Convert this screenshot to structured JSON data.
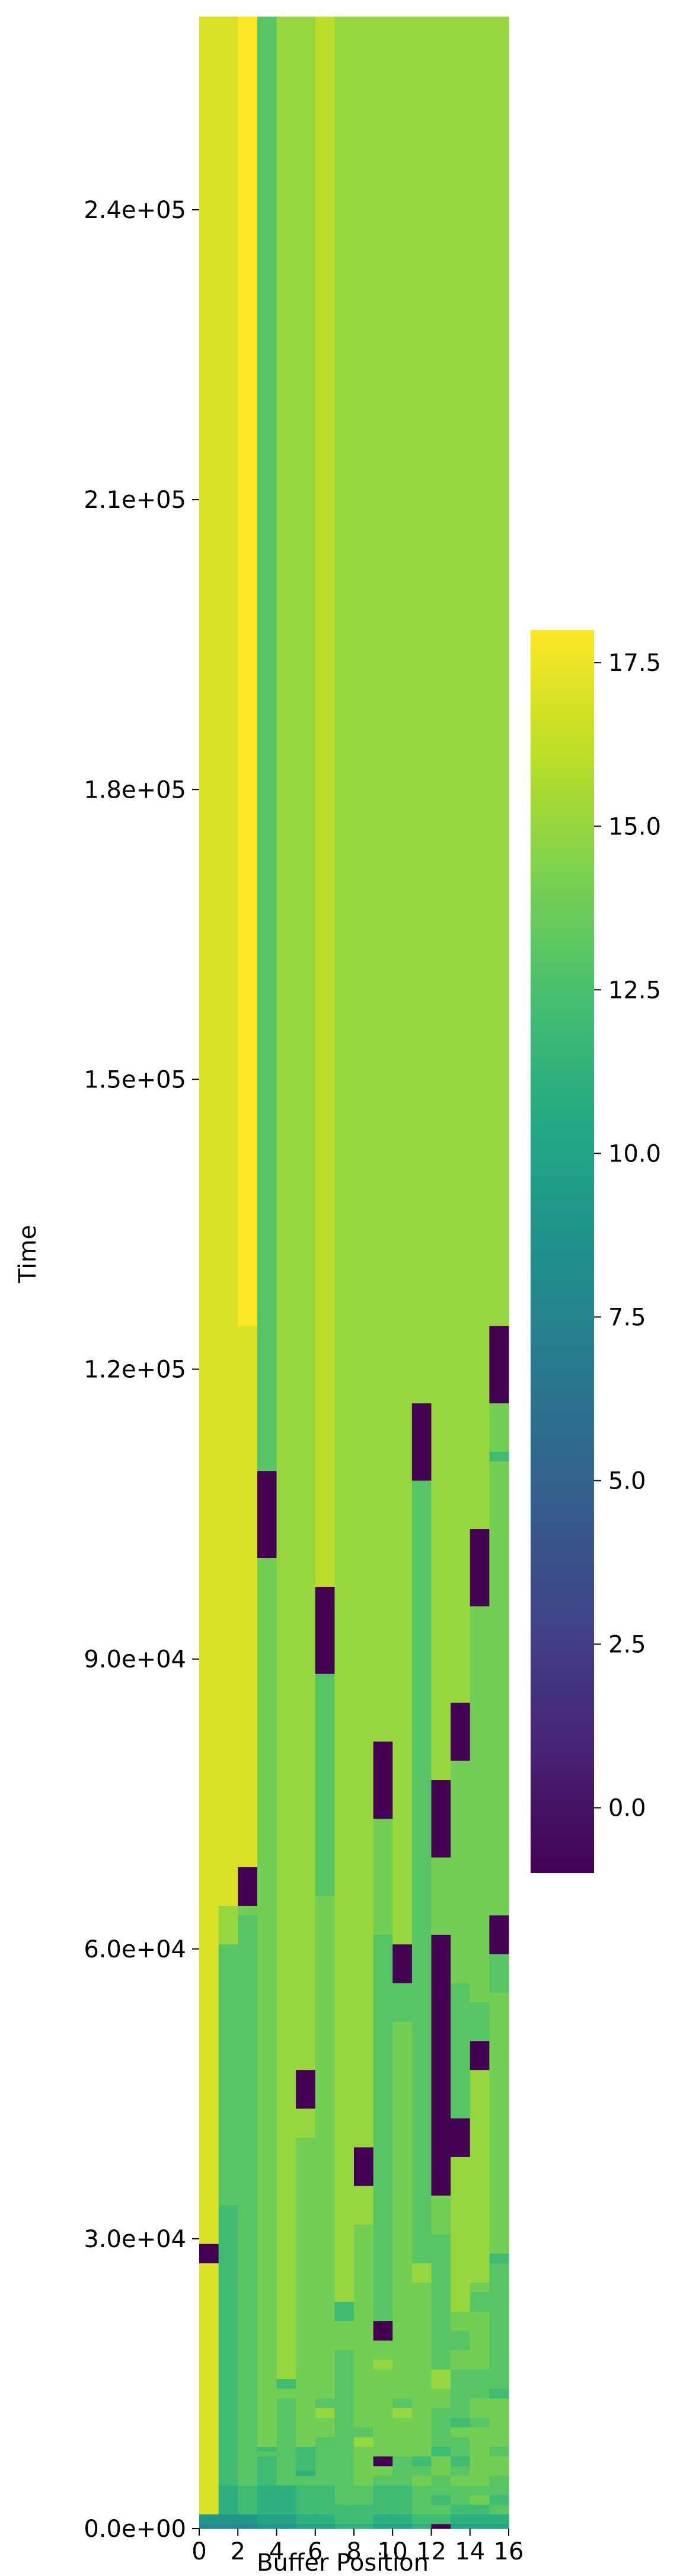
{
  "chart_data": {
    "type": "heatmap",
    "title": "",
    "xlabel": "Buffer Position",
    "ylabel": "Time",
    "x_range": [
      0,
      16
    ],
    "y_range": [
      0,
      260000
    ],
    "x_ticks": [
      0,
      2,
      4,
      6,
      8,
      10,
      12,
      14,
      16
    ],
    "x_tick_labels": [
      "0",
      "2",
      "4",
      "6",
      "8",
      "10",
      "12",
      "14",
      "16"
    ],
    "y_ticks": [
      0,
      30000,
      60000,
      90000,
      120000,
      150000,
      180000,
      210000,
      240000
    ],
    "y_tick_labels": [
      "0.0e+00",
      "3.0e+04",
      "6.0e+04",
      "9.0e+04",
      "1.2e+05",
      "1.5e+05",
      "1.8e+05",
      "2.1e+05",
      "2.4e+05"
    ],
    "colorbar": {
      "colormap": "viridis",
      "vmin": -1,
      "vmax": 18,
      "ticks": [
        0,
        2.5,
        5,
        7.5,
        10,
        12.5,
        15,
        17.5
      ],
      "tick_labels": [
        "0.0",
        "2.5",
        "5.0",
        "7.5",
        "10.0",
        "12.5",
        "15.0",
        "17.5"
      ]
    },
    "grid": false,
    "cell_height": 0.5,
    "columns": [
      [
        [
          0,
          8
        ],
        [
          1,
          9
        ],
        [
          3,
          17
        ],
        [
          55,
          -1
        ],
        [
          59,
          17
        ]
      ],
      [
        [
          0,
          8
        ],
        [
          1,
          9
        ],
        [
          3,
          11
        ],
        [
          9,
          12
        ],
        [
          67,
          13
        ],
        [
          121,
          15
        ],
        [
          129,
          17
        ]
      ],
      [
        [
          0,
          8
        ],
        [
          1,
          9
        ],
        [
          3,
          12
        ],
        [
          9,
          13
        ],
        [
          127,
          14
        ],
        [
          129,
          -1
        ],
        [
          137,
          17
        ],
        [
          249,
          18
        ]
      ],
      [
        [
          0,
          9
        ],
        [
          1,
          10
        ],
        [
          3,
          11
        ],
        [
          9,
          12
        ],
        [
          15,
          13
        ],
        [
          16,
          12
        ],
        [
          17,
          14
        ],
        [
          201,
          -1
        ],
        [
          219,
          13
        ]
      ],
      [
        [
          0,
          9
        ],
        [
          1,
          10
        ],
        [
          3,
          11
        ],
        [
          9,
          13
        ],
        [
          27,
          14
        ],
        [
          29,
          12
        ],
        [
          31,
          15
        ]
      ],
      [
        [
          0,
          10
        ],
        [
          1,
          11
        ],
        [
          3,
          12
        ],
        [
          9,
          13
        ],
        [
          11,
          11
        ],
        [
          12,
          12
        ],
        [
          17,
          14
        ],
        [
          81,
          15
        ],
        [
          87,
          -1
        ],
        [
          95,
          15
        ]
      ],
      [
        [
          0,
          10
        ],
        [
          1,
          11
        ],
        [
          3,
          12
        ],
        [
          9,
          13
        ],
        [
          19,
          14
        ],
        [
          23,
          15
        ],
        [
          25,
          13
        ],
        [
          27,
          14
        ],
        [
          131,
          13
        ],
        [
          177,
          -1
        ],
        [
          195,
          16
        ]
      ],
      [
        [
          0,
          11
        ],
        [
          1,
          12
        ],
        [
          5,
          13
        ],
        [
          37,
          14
        ],
        [
          43,
          12
        ],
        [
          47,
          15
        ]
      ],
      [
        [
          0,
          11
        ],
        [
          1,
          12
        ],
        [
          5,
          13
        ],
        [
          9,
          14
        ],
        [
          17,
          15
        ],
        [
          19,
          13
        ],
        [
          21,
          14
        ],
        [
          63,
          15
        ],
        [
          71,
          -1
        ],
        [
          79,
          15
        ]
      ],
      [
        [
          0,
          10
        ],
        [
          1,
          11
        ],
        [
          3,
          12
        ],
        [
          9,
          13
        ],
        [
          11,
          14
        ],
        [
          13,
          -1
        ],
        [
          15,
          14
        ],
        [
          33,
          15
        ],
        [
          35,
          14
        ],
        [
          39,
          -1
        ],
        [
          43,
          13
        ],
        [
          123,
          14
        ],
        [
          147,
          -1
        ],
        [
          163,
          15
        ]
      ],
      [
        [
          0,
          10
        ],
        [
          1,
          11
        ],
        [
          3,
          12
        ],
        [
          9,
          13
        ],
        [
          15,
          14
        ],
        [
          23,
          15
        ],
        [
          25,
          13
        ],
        [
          27,
          14
        ],
        [
          105,
          13
        ],
        [
          113,
          -1
        ],
        [
          121,
          15
        ]
      ],
      [
        [
          0,
          11
        ],
        [
          1,
          12
        ],
        [
          3,
          13
        ],
        [
          9,
          14
        ],
        [
          11,
          13
        ],
        [
          13,
          12
        ],
        [
          15,
          14
        ],
        [
          51,
          15
        ],
        [
          55,
          13
        ],
        [
          217,
          -1
        ],
        [
          233,
          15
        ]
      ],
      [
        [
          0,
          -1
        ],
        [
          1,
          12
        ],
        [
          3,
          13
        ],
        [
          5,
          12
        ],
        [
          7,
          13
        ],
        [
          11,
          14
        ],
        [
          15,
          12
        ],
        [
          17,
          13
        ],
        [
          25,
          14
        ],
        [
          29,
          15
        ],
        [
          33,
          13
        ],
        [
          61,
          14
        ],
        [
          69,
          -1
        ],
        [
          123,
          14
        ],
        [
          139,
          -1
        ],
        [
          155,
          15
        ]
      ],
      [
        [
          0,
          10
        ],
        [
          1,
          11
        ],
        [
          3,
          12
        ],
        [
          5,
          13
        ],
        [
          9,
          14
        ],
        [
          11,
          13
        ],
        [
          13,
          12
        ],
        [
          15,
          13
        ],
        [
          19,
          14
        ],
        [
          21,
          12
        ],
        [
          23,
          13
        ],
        [
          33,
          14
        ],
        [
          37,
          13
        ],
        [
          41,
          14
        ],
        [
          45,
          15
        ],
        [
          77,
          -1
        ],
        [
          85,
          13
        ],
        [
          113,
          14
        ],
        [
          159,
          -1
        ],
        [
          171,
          15
        ]
      ],
      [
        [
          0,
          10
        ],
        [
          1,
          11
        ],
        [
          3,
          12
        ],
        [
          5,
          14
        ],
        [
          7,
          13
        ],
        [
          9,
          14
        ],
        [
          21,
          13
        ],
        [
          23,
          14
        ],
        [
          27,
          13
        ],
        [
          33,
          14
        ],
        [
          45,
          13
        ],
        [
          49,
          14
        ],
        [
          51,
          15
        ],
        [
          95,
          -1
        ],
        [
          101,
          13
        ],
        [
          109,
          14
        ],
        [
          191,
          -1
        ],
        [
          207,
          15
        ]
      ],
      [
        [
          0,
          10
        ],
        [
          1,
          11
        ],
        [
          3,
          13
        ],
        [
          5,
          12
        ],
        [
          7,
          13
        ],
        [
          11,
          14
        ],
        [
          15,
          13
        ],
        [
          17,
          14
        ],
        [
          27,
          12
        ],
        [
          29,
          13
        ],
        [
          55,
          12
        ],
        [
          57,
          14
        ],
        [
          111,
          13
        ],
        [
          119,
          -1
        ],
        [
          127,
          14
        ],
        [
          221,
          12
        ],
        [
          223,
          14
        ],
        [
          233,
          -1
        ],
        [
          249,
          15
        ]
      ]
    ]
  }
}
